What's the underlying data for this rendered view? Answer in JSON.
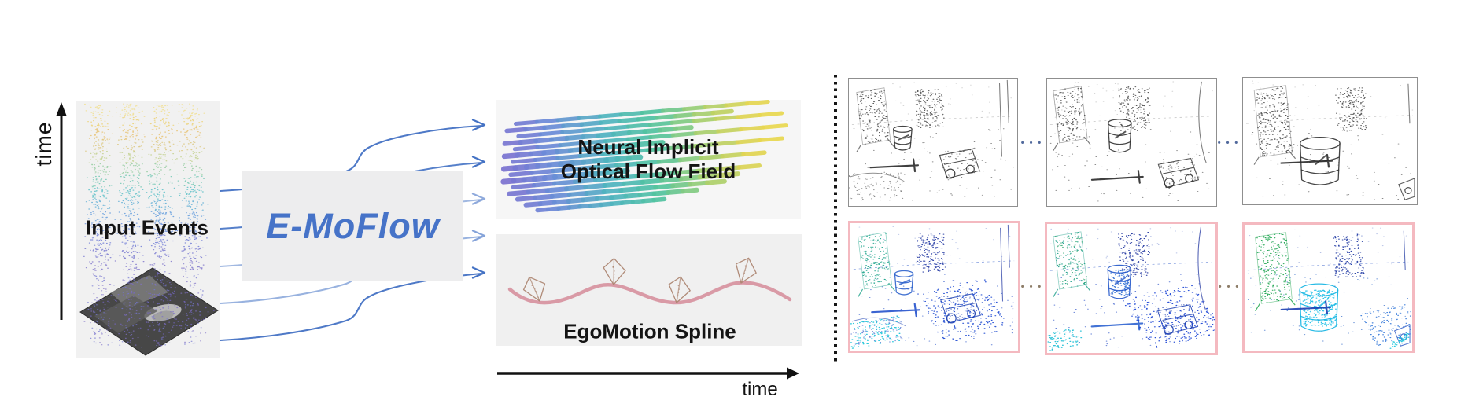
{
  "figure": {
    "left": {
      "time_axis_vertical_label": "time",
      "input_events_label": "Input Events",
      "module_label": "E-MoFlow",
      "flow_box_title_line1": "Neural Implicit",
      "flow_box_title_line2": "Optical Flow Field",
      "spline_box_label": "EgoMotion Spline",
      "time_axis_horizontal_label": "time"
    },
    "right": {
      "ellipsis": "•••"
    }
  },
  "colors": {
    "accent_blue": "#4673c8",
    "arrow_blue": "#4472c4",
    "module_box_gray": "#ededee",
    "panel_gray": "#f1f1f1",
    "spline_pink": "#d795a1",
    "frustum_tan": "#ad8672",
    "pink_border": "#f4b9c0",
    "gray_border": "#8f8f8f",
    "axis_black": "#111111",
    "flow_gradient": [
      [
        0,
        "#7e6fd0"
      ],
      [
        0.18,
        "#6b8bd8"
      ],
      [
        0.38,
        "#4fb4c0"
      ],
      [
        0.55,
        "#52c49e"
      ],
      [
        0.72,
        "#a8d06e"
      ],
      [
        0.88,
        "#e2d553"
      ],
      [
        1,
        "#edda4e"
      ]
    ],
    "event_cloud": [
      [
        0,
        "#f4e6a4"
      ],
      [
        0.08,
        "#eed56b"
      ],
      [
        0.2,
        "#e6bc6e"
      ],
      [
        0.3,
        "#cfd084"
      ],
      [
        0.42,
        "#7cc9a2"
      ],
      [
        0.52,
        "#55c2c2"
      ],
      [
        0.62,
        "#5aa8d8"
      ],
      [
        0.72,
        "#5f8ede"
      ],
      [
        0.82,
        "#6d79d6"
      ],
      [
        1,
        "#8172c8"
      ]
    ],
    "floor_purple": "#7668cc",
    "scenes": {
      "gray": {
        "board": [
          "#3f3f3f",
          "#5a5a5a"
        ],
        "pillar": "#474747",
        "faint": "#999999",
        "line": "#9a9a9a",
        "barrel": "#303030",
        "floorDots": "#585858",
        "stick": "#2a2a2a",
        "cart": "#333333"
      },
      "col1": {
        "board": [
          "#169a4b",
          "#1ba389"
        ],
        "pillar": "#19309f",
        "faint": "#6b84cf",
        "line": "#2b57c8",
        "barrel": "#2c62cc",
        "floorDots": "#2450c8",
        "stick": "#2552cc",
        "cart": "#1b3fb0",
        "shadow": "#1d49d2",
        "teal": "#17c3d8"
      },
      "col2": {
        "board": [
          "#1d9f8a",
          "#27a46a"
        ],
        "pillar": "#142a9a",
        "faint": "#6078ca",
        "line": "#2753c6",
        "barrel": "#2458ca",
        "floorDots": "#2148c4",
        "stick": "#2d63d0",
        "cart": "#1a3cae",
        "shadow": "#1640d4",
        "teal": "#18bcd4",
        "barrelFill": "#2f6fd4"
      },
      "col3": {
        "board": [
          "#10a042",
          "#0f9c4e"
        ],
        "pillar": "#15309e",
        "faint": "#5a74c6",
        "line": "#2652c4",
        "barrel": "#12b4e2",
        "floorDots": "#2e66c8",
        "stick": "#1c3eb2",
        "cart": "#2b58c4",
        "shadow": "#2d74d8",
        "teal": "#14c4da",
        "barrelFill": "#13bde6"
      }
    }
  }
}
